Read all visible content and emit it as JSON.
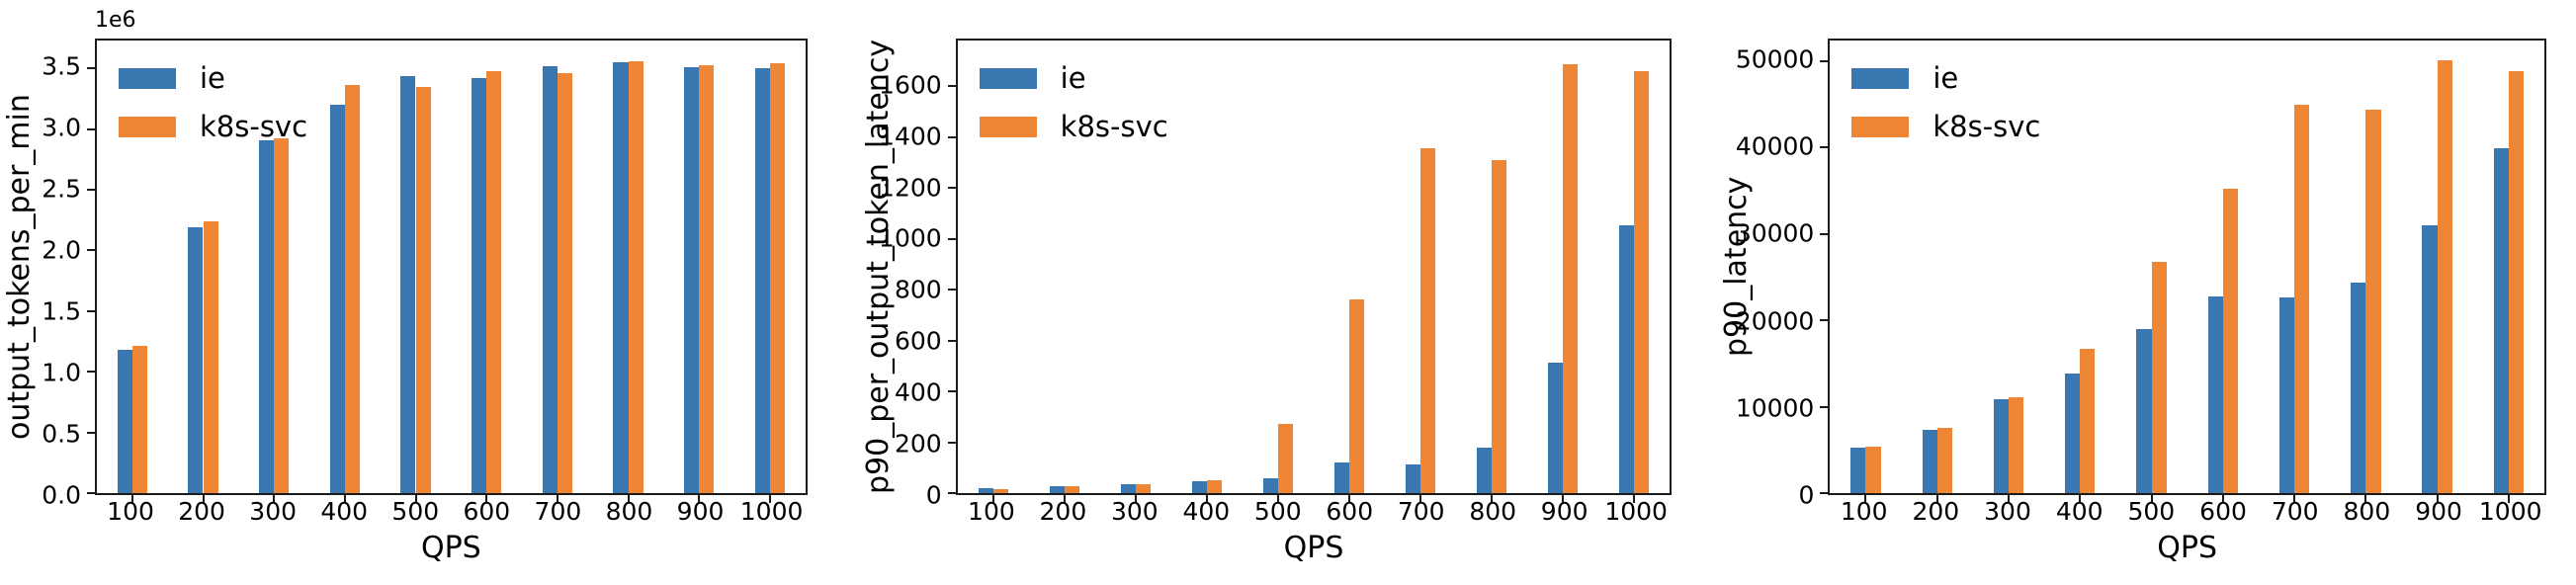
{
  "figure": {
    "series_colors": {
      "ie": "#3a76b0",
      "k8s-svc": "#ef8636"
    },
    "axis_color": "#1a1a1a",
    "background": "#ffffff"
  },
  "chart_data": [
    {
      "type": "bar",
      "title": "",
      "xlabel": "QPS",
      "ylabel": "output_tokens_per_min",
      "offset_label": "1e6",
      "categories": [
        "100",
        "200",
        "300",
        "400",
        "500",
        "600",
        "700",
        "800",
        "900",
        "1000"
      ],
      "ylim": [
        0,
        3730000
      ],
      "yticks": [
        0,
        500000,
        1000000,
        1500000,
        2000000,
        2500000,
        3000000,
        3500000
      ],
      "ytick_labels": [
        "0.0",
        "0.5",
        "1.0",
        "1.5",
        "2.0",
        "2.5",
        "3.0",
        "3.5"
      ],
      "grid": false,
      "legend": {
        "position": "upper-left",
        "entries": [
          "ie",
          "k8s-svc"
        ]
      },
      "series": [
        {
          "name": "ie",
          "color": "#3a76b0",
          "values": [
            1185000,
            2190000,
            2910000,
            3200000,
            3440000,
            3420000,
            3520000,
            3550000,
            3510000,
            3500000
          ]
        },
        {
          "name": "k8s-svc",
          "color": "#ef8636",
          "values": [
            1210000,
            2240000,
            2920000,
            3360000,
            3350000,
            3480000,
            3460000,
            3560000,
            3530000,
            3540000
          ]
        }
      ]
    },
    {
      "type": "bar",
      "title": "",
      "xlabel": "QPS",
      "ylabel": "p90_per_output_token_latency",
      "offset_label": "",
      "categories": [
        "100",
        "200",
        "300",
        "400",
        "500",
        "600",
        "700",
        "800",
        "900",
        "1000"
      ],
      "ylim": [
        0,
        1780
      ],
      "yticks": [
        0,
        200,
        400,
        600,
        800,
        1000,
        1200,
        1400,
        1600
      ],
      "ytick_labels": [
        "0",
        "200",
        "400",
        "600",
        "800",
        "1000",
        "1200",
        "1400",
        "1600"
      ],
      "grid": false,
      "legend": {
        "position": "upper-left",
        "entries": [
          "ie",
          "k8s-svc"
        ]
      },
      "series": [
        {
          "name": "ie",
          "color": "#3a76b0",
          "values": [
            18,
            28,
            36,
            45,
            58,
            122,
            113,
            180,
            515,
            1055
          ]
        },
        {
          "name": "k8s-svc",
          "color": "#ef8636",
          "values": [
            16,
            27,
            35,
            50,
            272,
            760,
            1355,
            1310,
            1685,
            1660
          ]
        }
      ]
    },
    {
      "type": "bar",
      "title": "",
      "xlabel": "QPS",
      "ylabel": "p90_latency",
      "offset_label": "",
      "categories": [
        "100",
        "200",
        "300",
        "400",
        "500",
        "600",
        "700",
        "800",
        "900",
        "1000"
      ],
      "ylim": [
        0,
        52400
      ],
      "yticks": [
        0,
        10000,
        20000,
        30000,
        40000,
        50000
      ],
      "ytick_labels": [
        "0",
        "10000",
        "20000",
        "30000",
        "40000",
        "50000"
      ],
      "grid": false,
      "legend": {
        "position": "upper-left",
        "entries": [
          "ie",
          "k8s-svc"
        ]
      },
      "series": [
        {
          "name": "ie",
          "color": "#3a76b0",
          "values": [
            5260,
            7300,
            10900,
            13800,
            19000,
            22800,
            22600,
            24400,
            31000,
            39900
          ]
        },
        {
          "name": "k8s-svc",
          "color": "#ef8636",
          "values": [
            5420,
            7550,
            11100,
            16750,
            26800,
            35200,
            45000,
            44400,
            50100,
            48900
          ]
        }
      ]
    }
  ]
}
